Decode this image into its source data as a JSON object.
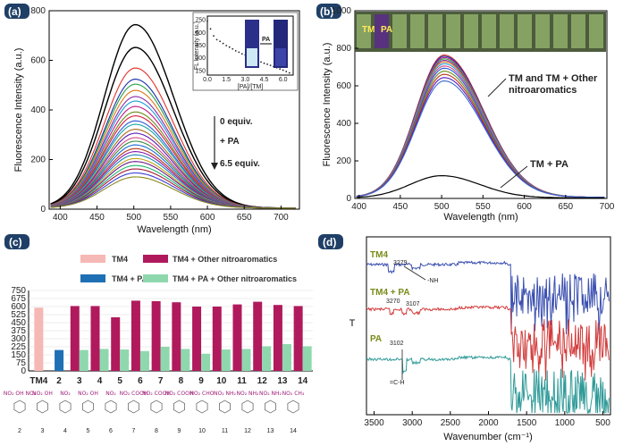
{
  "figure": {
    "colors": {
      "badge": "#1f3f66",
      "pink": "#f6b8b4",
      "blue": "#1f6fb5",
      "magenta": "#b01a5c",
      "mint": "#8fd8ae",
      "ir_blue": "#3a4fb0",
      "ir_red": "#d23b3b",
      "ir_teal": "#2f9a98",
      "olive": "#7a8b1a"
    }
  },
  "chart_data": [
    {
      "panel": "(a)",
      "type": "line",
      "xlabel": "Wavelength (nm)",
      "ylabel": "Fluorescence Intensity (a.u.)",
      "xlim": [
        385,
        725
      ],
      "ylim": [
        0,
        800
      ],
      "xticks": [
        400,
        450,
        500,
        550,
        600,
        650,
        700
      ],
      "yticks": [
        0,
        200,
        400,
        600,
        800
      ],
      "peak_x": 502,
      "peaks": [
        740,
        648,
        565,
        520,
        500,
        475,
        450,
        432,
        410,
        388,
        372,
        352,
        338,
        318,
        302,
        284,
        270,
        255,
        240,
        228,
        215,
        200,
        188,
        172,
        158,
        142,
        126
      ],
      "annotations": [
        "0 equiv.",
        "+ PA",
        "6.5 equiv."
      ],
      "inset": {
        "xlabel": "[PA]/[TM]",
        "ylabel": "FL Intensity (a.u.)",
        "xticks": [
          "0.0",
          "1.5",
          "3.0",
          "4.5",
          "6.0"
        ],
        "yticks": [
          "150",
          "300",
          "450",
          "600",
          "750"
        ],
        "x": [
          0.0,
          0.25,
          0.5,
          0.75,
          1.0,
          1.25,
          1.5,
          1.75,
          2.0,
          2.25,
          2.5,
          2.75,
          3.0,
          3.25,
          3.5,
          3.75,
          4.0,
          4.25,
          4.5,
          4.75,
          5.0,
          5.25,
          5.5,
          5.75,
          6.0,
          6.25,
          6.5
        ],
        "y": [
          740,
          648,
          565,
          520,
          500,
          475,
          450,
          432,
          410,
          388,
          372,
          352,
          338,
          318,
          302,
          284,
          270,
          255,
          240,
          228,
          215,
          200,
          188,
          172,
          158,
          142,
          126
        ],
        "photo_label": "PA"
      }
    },
    {
      "panel": "(b)",
      "type": "line",
      "xlabel": "Wavelength (nm)",
      "ylabel": "Fluorescence Intensity (a.u.)",
      "xlim": [
        395,
        700
      ],
      "ylim": [
        0,
        1000
      ],
      "xticks": [
        400,
        450,
        500,
        550,
        600,
        650,
        700
      ],
      "yticks": [
        0,
        200,
        400,
        600,
        800,
        1000
      ],
      "group_peaks": [
        758,
        752,
        745,
        738,
        730,
        722,
        712,
        700,
        688,
        672,
        655,
        638,
        620
      ],
      "pa_peak": 118,
      "annotations": [
        "TM and TM + Other",
        "nitroaromatics",
        "TM + PA"
      ],
      "vial_labels": [
        "TM",
        "PA"
      ]
    },
    {
      "panel": "(c)",
      "type": "bar",
      "categories": [
        "TM4",
        "2",
        "3",
        "4",
        "5",
        "6",
        "7",
        "8",
        "9",
        "10",
        "11",
        "12",
        "13",
        "14"
      ],
      "ylim": [
        0,
        750
      ],
      "yticks": [
        0,
        75,
        150,
        225,
        300,
        375,
        450,
        525,
        600,
        675,
        750
      ],
      "series": [
        {
          "name": "TM4",
          "values": [
            590,
            null,
            null,
            null,
            null,
            null,
            null,
            null,
            null,
            null,
            null,
            null,
            null,
            null
          ]
        },
        {
          "name": "TM4 + PA",
          "values": [
            null,
            195,
            null,
            null,
            null,
            null,
            null,
            null,
            null,
            null,
            null,
            null,
            null,
            null
          ]
        },
        {
          "name": "TM4 + Other nitroaromatics",
          "values": [
            null,
            null,
            605,
            605,
            500,
            655,
            650,
            640,
            600,
            600,
            620,
            645,
            615,
            605
          ]
        },
        {
          "name": "TM4 + PA + Other nitroaromatics",
          "values": [
            null,
            null,
            195,
            205,
            200,
            185,
            225,
            205,
            160,
            200,
            205,
            230,
            250,
            230
          ]
        }
      ],
      "structure_labels": [
        "2",
        "3",
        "4",
        "5",
        "6",
        "7",
        "8",
        "9",
        "10",
        "11",
        "12",
        "13",
        "14"
      ],
      "structure_groups": [
        "NO₂ OH NO₂",
        "NO₂ OH",
        "NO₂",
        "NO₂ OH",
        "NO₂",
        "NO₂ COOH",
        "NO₂ COOH",
        "NO₂ COOH",
        "NO₂ CHO",
        "NO₂ NH₂",
        "NO₂ NH₂",
        "NO₂ NH₂",
        "NO₂ CH₃"
      ]
    },
    {
      "panel": "(d)",
      "type": "line",
      "xlabel": "Wavenumber (cm⁻¹)",
      "ylabel": "T",
      "xlim": [
        3600,
        400
      ],
      "xticks": [
        3500,
        3000,
        2500,
        2000,
        1500,
        1000,
        500
      ],
      "series": [
        {
          "name": "TM4",
          "offset": 2.0
        },
        {
          "name": "TM4 + PA",
          "offset": 1.0
        },
        {
          "name": "PA",
          "offset": 0.0
        }
      ],
      "annotations": [
        "3279",
        "-NH",
        "3270",
        "3107",
        "3102",
        "=C-H"
      ]
    }
  ]
}
